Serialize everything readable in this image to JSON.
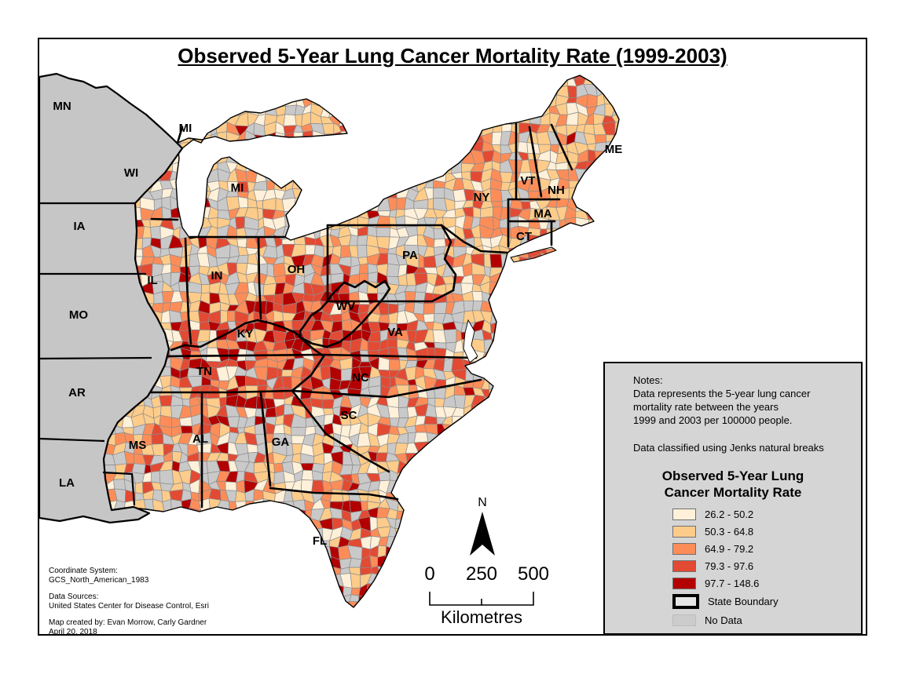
{
  "title": "Observed 5-Year Lung Cancer Mortality Rate (1999-2003)",
  "notes": {
    "heading": "Notes:",
    "line1": "Data represents the 5-year lung cancer",
    "line2": "mortality rate between the years",
    "line3": "1999 and 2003 per 100000 people.",
    "classification": "Data classified using Jenks natural breaks"
  },
  "legend": {
    "title_line1": "Observed 5-Year Lung",
    "title_line2": "Cancer Mortality Rate",
    "classes": [
      {
        "label": "26.2 - 50.2",
        "color": "#FEF0D9"
      },
      {
        "label": "50.3 - 64.8",
        "color": "#FDCC8A"
      },
      {
        "label": "64.9 - 79.2",
        "color": "#FC8D59"
      },
      {
        "label": "79.3 - 97.6",
        "color": "#E34A33"
      },
      {
        "label": "97.7 - 148.6",
        "color": "#B30000"
      }
    ],
    "state_boundary_label": "State Boundary",
    "no_data_label": "No Data",
    "no_data_color": "#CCCCCC"
  },
  "north_label": "N",
  "scale_bar": {
    "ticks": [
      "0",
      "250",
      "500"
    ],
    "unit": "Kilometres"
  },
  "credits": {
    "coord_heading": "Coordinate System:",
    "coord_value": "GCS_North_American_1983",
    "sources_heading": "Data Sources:",
    "sources_value": "United States Center for Disease Control, Esri",
    "created_by": "Map created by: Evan Morrow, Carly Gardner",
    "date": "April 20, 2018"
  },
  "map": {
    "state_labels": [
      "MN",
      "WI",
      "MI",
      "MI",
      "IA",
      "IL",
      "IN",
      "OH",
      "MO",
      "KY",
      "WV",
      "PA",
      "NY",
      "VT",
      "NH",
      "ME",
      "MA",
      "CT",
      "VA",
      "NC",
      "TN",
      "AR",
      "SC",
      "MS",
      "AL",
      "GA",
      "LA",
      "FL"
    ],
    "no_data_state_color": "#C6C6C6",
    "no_data_county_color": "#C9C9C9",
    "county_border_color": "#8C8C8C",
    "water_color": "#FFFFFF"
  }
}
